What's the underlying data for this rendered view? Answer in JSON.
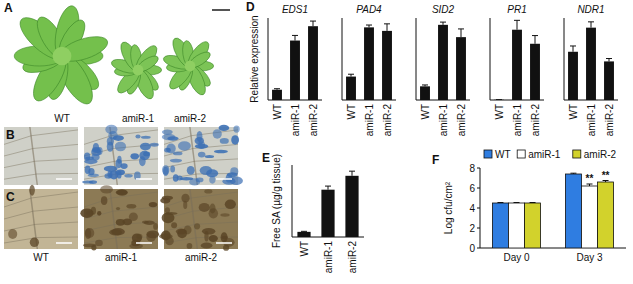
{
  "photo_panels": [
    {
      "letter": "A",
      "labels": [
        "WT",
        "amiR-1",
        "amiR-2"
      ]
    },
    {
      "letter": "B"
    },
    {
      "letter": "C",
      "labels": [
        "WT",
        "amiR-1",
        "amiR-2"
      ]
    }
  ],
  "chart_data": [
    {
      "type": "bar",
      "panel": "D",
      "title": "EDS1",
      "ylabel": "Relative expression",
      "categories": [
        "WT",
        "amiR-1",
        "amiR-2"
      ],
      "values": [
        1,
        5.8,
        7.2
      ],
      "errors": [
        0.1,
        0.5,
        0.5
      ],
      "color": "#111111",
      "ylim": [
        0,
        8
      ],
      "tick_labels": false
    },
    {
      "type": "bar",
      "title": "PAD4",
      "categories": [
        "WT",
        "amiR-1",
        "amiR-2"
      ],
      "values": [
        1,
        3.1,
        2.95
      ],
      "errors": [
        0.1,
        0.1,
        0.3
      ],
      "color": "#111111",
      "ylim": [
        0,
        3.5
      ],
      "tick_labels": false
    },
    {
      "type": "bar",
      "title": "SID2",
      "categories": [
        "WT",
        "amiR-1",
        "amiR-2"
      ],
      "values": [
        1,
        5.5,
        4.6
      ],
      "errors": [
        0.1,
        0.2,
        0.6
      ],
      "color": "#111111",
      "ylim": [
        0,
        6
      ],
      "tick_labels": false
    },
    {
      "type": "bar",
      "title": "PR1",
      "categories": [
        "WT",
        "amiR-1",
        "amiR-2"
      ],
      "values": [
        2,
        600,
        480
      ],
      "errors": [
        1,
        80,
        70
      ],
      "color": "#111111",
      "ylim": [
        0,
        700
      ],
      "tick_labels": false
    },
    {
      "type": "bar",
      "title": "NDR1",
      "categories": [
        "WT",
        "amiR-1",
        "amiR-2"
      ],
      "values": [
        1,
        1.5,
        0.8
      ],
      "errors": [
        0.12,
        0.12,
        0.06
      ],
      "color": "#111111",
      "ylim": [
        0,
        1.7
      ],
      "tick_labels": false
    },
    {
      "type": "bar",
      "panel": "E",
      "ylabel": "Free SA (µg/g tissue)",
      "categories": [
        "WT",
        "amiR-1",
        "amiR-2"
      ],
      "values": [
        1,
        9.2,
        11.9
      ],
      "errors": [
        0.1,
        0.7,
        0.9
      ],
      "color": "#111111",
      "ylim": [
        0,
        14
      ],
      "tick_labels": false
    },
    {
      "type": "bar",
      "panel": "F",
      "ylabel": "Log cfu/cm²",
      "categories": [
        "Day 0",
        "Day 3"
      ],
      "legend": "top",
      "series": [
        {
          "name": "WT",
          "color": "#2f7de1",
          "values": [
            4.5,
            7.4
          ],
          "errors": [
            0.05,
            0.08
          ]
        },
        {
          "name": "amiR-1",
          "color": "#ffffff",
          "values": [
            4.5,
            6.2
          ],
          "errors": [
            0.05,
            0.2
          ]
        },
        {
          "name": "amiR-2",
          "color": "#d2d22c",
          "values": [
            4.5,
            6.6
          ],
          "errors": [
            0.05,
            0.15
          ]
        }
      ],
      "ylim": [
        0,
        8
      ],
      "yticks": [
        0,
        2,
        4,
        6,
        8
      ],
      "annotations": [
        {
          "text": "**",
          "series": 1,
          "category": 1
        },
        {
          "text": "**",
          "series": 2,
          "category": 1
        }
      ]
    }
  ]
}
